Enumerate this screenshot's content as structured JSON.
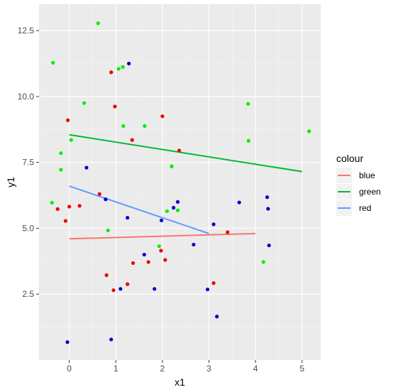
{
  "chart_data": {
    "type": "scatter",
    "xlabel": "x1",
    "ylabel": "y1",
    "xlim": [
      -0.65,
      5.4
    ],
    "ylim": [
      0.0,
      13.5
    ],
    "x_ticks": [
      0,
      1,
      2,
      3,
      4,
      5
    ],
    "y_ticks": [
      2.5,
      5.0,
      7.5,
      10.0,
      12.5
    ],
    "x_tick_labels": [
      "0",
      "1",
      "2",
      "3",
      "4",
      "5"
    ],
    "y_tick_labels": [
      "2.5",
      "5.0",
      "7.5",
      "10.0",
      "12.5"
    ],
    "grid": true,
    "legend": {
      "title": "colour",
      "placement": "right",
      "entries": [
        "blue",
        "green",
        "red"
      ]
    },
    "series": [
      {
        "name": "blue",
        "point_color": "#0000cc",
        "line_color": "#f8766d",
        "points": [
          [
            1.28,
            11.25
          ],
          [
            0.37,
            7.3
          ],
          [
            0.78,
            6.1
          ],
          [
            1.25,
            5.4
          ],
          [
            2.33,
            6.0
          ],
          [
            2.24,
            5.78
          ],
          [
            1.98,
            5.3
          ],
          [
            3.1,
            5.15
          ],
          [
            3.65,
            5.98
          ],
          [
            4.25,
            6.18
          ],
          [
            4.27,
            5.74
          ],
          [
            4.29,
            4.35
          ],
          [
            2.67,
            4.38
          ],
          [
            1.61,
            4.0
          ],
          [
            1.83,
            2.7
          ],
          [
            1.1,
            2.7
          ],
          [
            2.97,
            2.68
          ],
          [
            3.17,
            1.65
          ],
          [
            -0.04,
            0.68
          ],
          [
            0.9,
            0.78
          ]
        ],
        "fit": [
          [
            0.0,
            4.6
          ],
          [
            4.0,
            4.8
          ]
        ]
      },
      {
        "name": "green",
        "point_color": "#00ee00",
        "line_color": "#00ba38",
        "points": [
          [
            0.62,
            12.78
          ],
          [
            -0.35,
            11.28
          ],
          [
            1.15,
            11.12
          ],
          [
            1.06,
            11.05
          ],
          [
            0.32,
            9.75
          ],
          [
            3.84,
            9.72
          ],
          [
            1.16,
            8.88
          ],
          [
            1.62,
            8.88
          ],
          [
            5.15,
            8.68
          ],
          [
            0.04,
            8.35
          ],
          [
            3.85,
            8.32
          ],
          [
            -0.18,
            7.85
          ],
          [
            -0.18,
            7.22
          ],
          [
            2.2,
            7.35
          ],
          [
            -0.37,
            5.97
          ],
          [
            2.1,
            5.65
          ],
          [
            2.33,
            5.68
          ],
          [
            0.83,
            4.92
          ],
          [
            1.93,
            4.32
          ],
          [
            4.17,
            3.72
          ]
        ],
        "fit": [
          [
            0.0,
            8.55
          ],
          [
            5.0,
            7.15
          ]
        ]
      },
      {
        "name": "red",
        "point_color": "#ee0000",
        "line_color": "#619cff",
        "points": [
          [
            0.9,
            10.92
          ],
          [
            0.98,
            9.62
          ],
          [
            -0.03,
            9.1
          ],
          [
            2.0,
            9.25
          ],
          [
            1.35,
            8.35
          ],
          [
            2.36,
            7.95
          ],
          [
            0.65,
            6.3
          ],
          [
            -0.25,
            5.73
          ],
          [
            0.0,
            5.82
          ],
          [
            0.22,
            5.85
          ],
          [
            -0.08,
            5.28
          ],
          [
            3.4,
            4.85
          ],
          [
            1.97,
            4.15
          ],
          [
            2.06,
            3.8
          ],
          [
            1.7,
            3.72
          ],
          [
            1.37,
            3.68
          ],
          [
            0.8,
            3.22
          ],
          [
            1.25,
            2.88
          ],
          [
            0.95,
            2.65
          ],
          [
            3.1,
            2.92
          ]
        ],
        "fit": [
          [
            0.0,
            6.6
          ],
          [
            3.0,
            4.8
          ]
        ]
      }
    ]
  }
}
